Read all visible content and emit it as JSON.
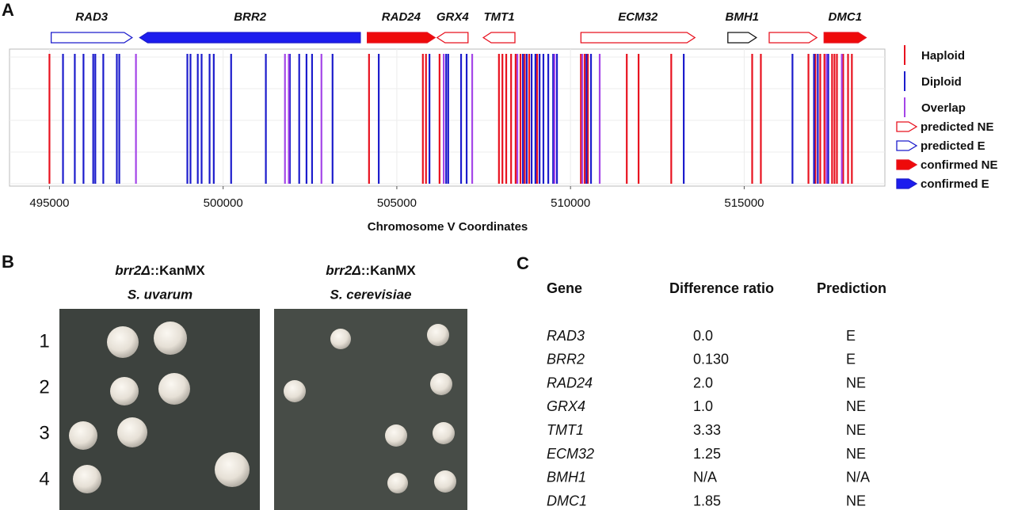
{
  "panel_labels": [
    "A",
    "B",
    "C"
  ],
  "chart_data": {
    "type": "track",
    "xlabel": "Chromosome V Coordinates",
    "xlim": [
      493850,
      519050
    ],
    "xticks": [
      495000,
      500000,
      505000,
      510000,
      515000
    ],
    "grid": true,
    "series": [
      {
        "name": "Haploid",
        "color": "#e8121f",
        "values": [
          495000,
          504200,
          505750,
          505840,
          506230,
          507940,
          508040,
          508150,
          508290,
          508420,
          508560,
          508680,
          508810,
          509040,
          510300,
          510410,
          510500,
          511620,
          511960,
          512900,
          515230,
          515480,
          516850,
          517050,
          517190,
          517310,
          517530,
          517600,
          517670,
          517850,
          517990,
          518100
        ]
      },
      {
        "name": "Diploid",
        "color": "#1c1ccc",
        "values": [
          495390,
          495730,
          495980,
          496260,
          496320,
          496550,
          496940,
          497010,
          498970,
          499060,
          499270,
          499380,
          499610,
          499730,
          500230,
          501230,
          501920,
          502190,
          502400,
          502560,
          503150,
          504480,
          505940,
          506420,
          506480,
          506850,
          507010,
          508630,
          508740,
          508880,
          508990,
          509110,
          509220,
          509360,
          509500,
          509610,
          510460,
          510590,
          513260,
          516390,
          517010,
          517120,
          517420
        ]
      },
      {
        "name": "Overlap",
        "color": "#a445e8",
        "values": [
          497490,
          501780,
          501890,
          502830,
          506350,
          507170,
          508470,
          509540,
          510340,
          510840,
          517370,
          517810
        ]
      }
    ],
    "genes": [
      {
        "name": "RAD3",
        "start": 495050,
        "end": 497380,
        "strand": "+",
        "stroke": "#1c1ccc",
        "fill": "#ffffff"
      },
      {
        "name": "BRR2",
        "start": 497600,
        "end": 503950,
        "strand": "-",
        "stroke": "#1c1ccc",
        "fill": "#1c1cee"
      },
      {
        "name": "RAD24",
        "start": 504150,
        "end": 506100,
        "strand": "+",
        "stroke": "#e8121f",
        "fill": "#ee0a0a"
      },
      {
        "name": "GRX4",
        "start": 506160,
        "end": 507050,
        "strand": "-",
        "stroke": "#e8121f",
        "fill": "#ffffff"
      },
      {
        "name": "TMT1",
        "start": 507490,
        "end": 508400,
        "strand": "-",
        "stroke": "#e8121f",
        "fill": "#ffffff"
      },
      {
        "name": "ECM32",
        "start": 510300,
        "end": 513580,
        "strand": "+",
        "stroke": "#e8121f",
        "fill": "#ffffff"
      },
      {
        "name": "BMH1",
        "start": 514530,
        "end": 515350,
        "strand": "+",
        "stroke": "#111111",
        "fill": "#ffffff"
      },
      {
        "name": null,
        "start": 515720,
        "end": 517090,
        "strand": "+",
        "stroke": "#e8121f",
        "fill": "#ffffff"
      },
      {
        "name": "DMC1",
        "start": 517300,
        "end": 518510,
        "strand": "+",
        "stroke": "#e8121f",
        "fill": "#ee0a0a"
      }
    ],
    "gene_legend": [
      {
        "name": "predicted NE",
        "stroke": "#e8121f",
        "fill": "#ffffff"
      },
      {
        "name": "predicted E",
        "stroke": "#1c1ccc",
        "fill": "#ffffff"
      },
      {
        "name": "confirmed NE",
        "stroke": "#e8121f",
        "fill": "#ee0a0a"
      },
      {
        "name": "confirmed E",
        "stroke": "#1c1ccc",
        "fill": "#1c1cee"
      }
    ]
  },
  "panel_b": {
    "plates": [
      {
        "strain": "brr2Δ",
        "marker": "::KanMX",
        "species": "S. uvarum"
      },
      {
        "strain": "brr2Δ",
        "marker": "::KanMX",
        "species": "S. cerevisiae"
      }
    ],
    "rows": [
      "1",
      "2",
      "3",
      "4"
    ]
  },
  "panel_c": {
    "table": {
      "header": [
        "Gene",
        "Difference ratio",
        "Prediction"
      ],
      "rows": [
        [
          "RAD3",
          "0.0",
          "E"
        ],
        [
          "BRR2",
          "0.130",
          "E"
        ],
        [
          "RAD24",
          "2.0",
          "NE"
        ],
        [
          "GRX4",
          "1.0",
          "NE"
        ],
        [
          "TMT1",
          "3.33",
          "NE"
        ],
        [
          "ECM32",
          "1.25",
          "NE"
        ],
        [
          "BMH1",
          "N/A",
          "N/A"
        ],
        [
          "DMC1",
          "1.85",
          "NE"
        ]
      ]
    }
  }
}
